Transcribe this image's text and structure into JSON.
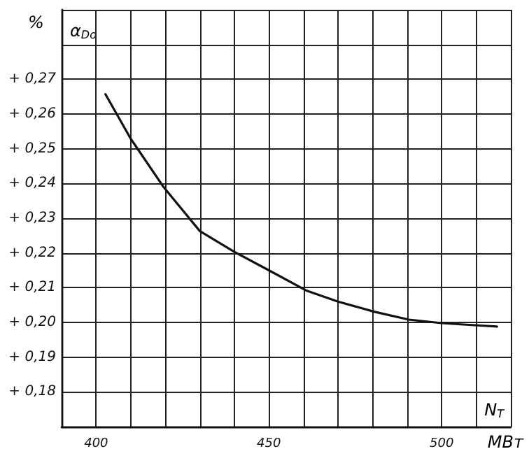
{
  "chart_data": {
    "type": "line",
    "ylabel": "%",
    "xlabel": "МВт",
    "annotations": [
      "α$_{Do}$",
      "N$_{T}$"
    ],
    "xlim": [
      390,
      520
    ],
    "ylim": [
      0.17,
      0.29
    ],
    "xticks": [
      {
        "value": 390,
        "label": null
      },
      400,
      {
        "value": 410,
        "label": null
      },
      {
        "value": 420,
        "label": null
      },
      {
        "value": 430,
        "label": null
      },
      {
        "value": 440,
        "label": null
      },
      450,
      {
        "value": 460,
        "label": null
      },
      {
        "value": 470,
        "label": null
      },
      {
        "value": 480,
        "label": null
      },
      {
        "value": 490,
        "label": null
      },
      500,
      {
        "value": 510,
        "label": null
      },
      {
        "value": 520,
        "label": null
      }
    ],
    "yticks": [
      {
        "value": 0.17,
        "label": null
      },
      {
        "value": 0.18,
        "label": "+ 0,18"
      },
      {
        "value": 0.19,
        "label": "+ 0,19"
      },
      {
        "value": 0.2,
        "label": "+ 0,20"
      },
      {
        "value": 0.21,
        "label": "+ 0,21"
      },
      {
        "value": 0.22,
        "label": "+ 0,22"
      },
      {
        "value": 0.23,
        "label": "+ 0,23"
      },
      {
        "value": 0.24,
        "label": "+ 0,24"
      },
      {
        "value": 0.25,
        "label": "+ 0,25"
      },
      {
        "value": 0.26,
        "label": "+ 0,26"
      },
      {
        "value": 0.27,
        "label": "+ 0,27"
      },
      {
        "value": 0.28,
        "label": null
      },
      {
        "value": 0.29,
        "label": null
      }
    ],
    "grid": true,
    "marker": "none",
    "line_style": "solid",
    "series": [
      {
        "color": "#111111",
        "x": [
          402.7,
          410,
          419.5,
          430,
          440,
          450,
          461,
          470,
          480.4,
          490.5,
          500,
          508,
          516
        ],
        "values": [
          0.2657,
          0.2529,
          0.239,
          0.2263,
          0.2203,
          0.215,
          0.2091,
          0.206,
          0.2031,
          0.2008,
          0.1998,
          0.1993,
          0.1988
        ]
      }
    ]
  }
}
